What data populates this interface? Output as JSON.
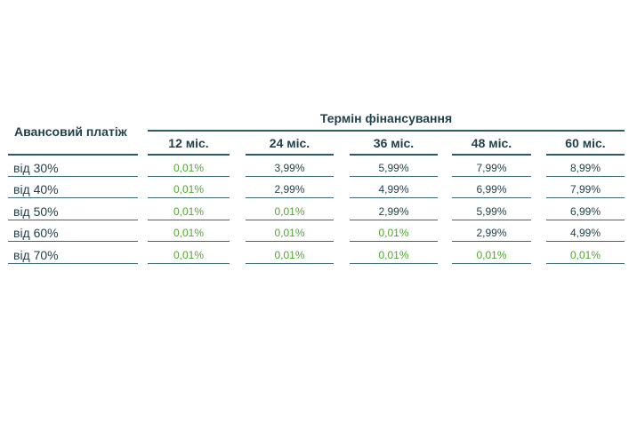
{
  "table": {
    "row_header_title": "Авансовий платіж",
    "term_title": "Термін фінансування",
    "columns": [
      "12 міс.",
      "24 міс.",
      "36 міс.",
      "48 міс.",
      "60 міс."
    ],
    "rows": [
      {
        "label": "від 30%",
        "values": [
          "0,01%",
          "3,99%",
          "5,99%",
          "7,99%",
          "8,99%"
        ],
        "green": [
          true,
          false,
          false,
          false,
          false
        ]
      },
      {
        "label": "від 40%",
        "values": [
          "0,01%",
          "2,99%",
          "4,99%",
          "6,99%",
          "7,99%"
        ],
        "green": [
          true,
          false,
          false,
          false,
          false
        ]
      },
      {
        "label": "від 50%",
        "values": [
          "0,01%",
          "0,01%",
          "2,99%",
          "5,99%",
          "6,99%"
        ],
        "green": [
          true,
          true,
          false,
          false,
          false
        ]
      },
      {
        "label": "від 60%",
        "values": [
          "0,01%",
          "0,01%",
          "0,01%",
          "2,99%",
          "4,99%"
        ],
        "green": [
          true,
          true,
          true,
          false,
          false
        ]
      },
      {
        "label": "від 70%",
        "values": [
          "0,01%",
          "0,01%",
          "0,01%",
          "0,01%",
          "0,01%"
        ],
        "green": [
          true,
          true,
          true,
          true,
          true
        ]
      }
    ]
  },
  "colors": {
    "text": "#1f3f4a",
    "line": "#2e5a66",
    "highlight": "#4fa62f"
  }
}
